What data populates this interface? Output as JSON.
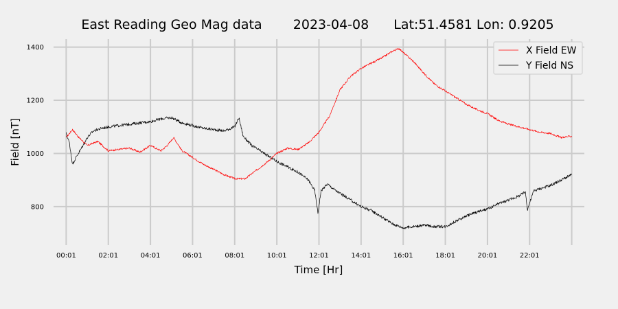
{
  "chart_data": {
    "type": "line",
    "title": {
      "station": "East Reading Geo Mag data",
      "date": "2023-04-08",
      "location": "Lat:51.4581  Lon: 0.9205"
    },
    "xlabel": "Time  [Hr]",
    "ylabel": "Field  [nT]",
    "xlim": [
      -0.6,
      24.6
    ],
    "ylim": [
      655,
      1430
    ],
    "xticks": [
      0,
      2,
      4,
      6,
      8,
      10,
      12,
      14,
      16,
      18,
      20,
      22
    ],
    "xtick_labels": [
      "00:01",
      "02:01",
      "04:01",
      "06:01",
      "08:01",
      "10:01",
      "12:01",
      "14:01",
      "16:01",
      "18:01",
      "20:01",
      "22:01"
    ],
    "x_gridlines": [
      0,
      2,
      4,
      6,
      8,
      10,
      12,
      14,
      16,
      18,
      20,
      22,
      24
    ],
    "yticks": [
      800,
      1000,
      1200,
      1400
    ],
    "grid": true,
    "legend_position": "top-right",
    "series": [
      {
        "name": "X Field EW",
        "color": "#ff0000",
        "x": [
          0,
          0.3,
          0.6,
          1,
          1.5,
          2,
          2.5,
          3,
          3.5,
          4,
          4.5,
          4.8,
          5.1,
          5.5,
          6,
          6.5,
          7,
          7.5,
          8,
          8.5,
          9,
          9.5,
          10,
          10.5,
          11,
          11.5,
          12,
          12.5,
          13,
          13.5,
          14,
          14.5,
          15,
          15.5,
          15.8,
          16,
          16.5,
          17,
          17.5,
          18,
          18.5,
          19,
          19.5,
          20,
          20.5,
          21,
          21.5,
          22,
          22.5,
          23,
          23.5,
          24
        ],
        "y": [
          1060,
          1090,
          1060,
          1030,
          1045,
          1010,
          1015,
          1020,
          1005,
          1030,
          1010,
          1030,
          1060,
          1010,
          985,
          960,
          940,
          920,
          905,
          905,
          935,
          965,
          1000,
          1020,
          1015,
          1040,
          1080,
          1140,
          1240,
          1290,
          1320,
          1340,
          1360,
          1385,
          1395,
          1380,
          1345,
          1300,
          1260,
          1235,
          1210,
          1185,
          1165,
          1150,
          1125,
          1110,
          1100,
          1090,
          1080,
          1075,
          1060,
          1065
        ]
      },
      {
        "name": "Y Field NS",
        "color": "#000000",
        "x": [
          0,
          0.15,
          0.3,
          0.5,
          0.8,
          1,
          1.3,
          1.7,
          2,
          2.5,
          3,
          3.5,
          4,
          4.5,
          5,
          5.5,
          6,
          6.5,
          7,
          7.5,
          8,
          8.2,
          8.4,
          8.8,
          9.2,
          9.6,
          10,
          10.5,
          11,
          11.5,
          11.8,
          11.95,
          12.1,
          12.4,
          12.8,
          13.2,
          13.6,
          14,
          14.5,
          15,
          15.5,
          16,
          16.5,
          17,
          17.5,
          18,
          18.5,
          19,
          19.5,
          20,
          20.5,
          21,
          21.5,
          21.8,
          21.9,
          22.2,
          22.6,
          23,
          23.5,
          24
        ],
        "y": [
          1075,
          1040,
          960,
          990,
          1030,
          1060,
          1085,
          1095,
          1100,
          1105,
          1110,
          1115,
          1120,
          1130,
          1135,
          1115,
          1105,
          1095,
          1090,
          1085,
          1100,
          1135,
          1065,
          1030,
          1010,
          990,
          970,
          950,
          930,
          900,
          860,
          775,
          860,
          885,
          860,
          840,
          820,
          800,
          785,
          760,
          735,
          720,
          725,
          730,
          725,
          725,
          745,
          765,
          780,
          790,
          810,
          825,
          840,
          855,
          790,
          860,
          870,
          880,
          900,
          920
        ]
      }
    ]
  }
}
